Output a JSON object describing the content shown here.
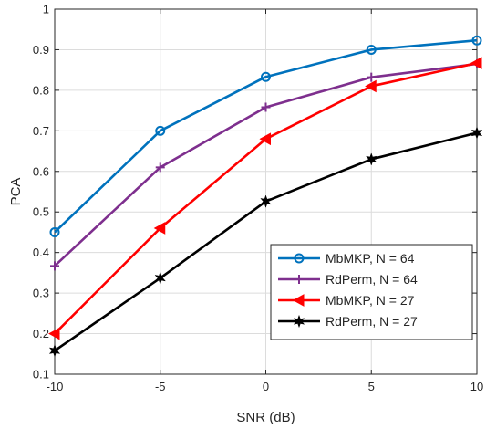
{
  "chart_data": {
    "type": "line",
    "x": [
      -10,
      -5,
      0,
      5,
      10
    ],
    "xlabel": "SNR (dB)",
    "ylabel": "PCA",
    "xlim": [
      -10,
      10
    ],
    "ylim": [
      0.1,
      1
    ],
    "xticks": [
      -10,
      -5,
      0,
      5,
      10
    ],
    "xtick_labels": [
      "-10",
      "-5",
      "0",
      "5",
      "10"
    ],
    "yticks": [
      0.1,
      0.2,
      0.3,
      0.4,
      0.5,
      0.6,
      0.7,
      0.8,
      0.9,
      1
    ],
    "ytick_labels": [
      "0.1",
      "0.2",
      "0.3",
      "0.4",
      "0.5",
      "0.6",
      "0.7",
      "0.8",
      "0.9",
      "1"
    ],
    "grid": true,
    "legend_position": "bottom-right",
    "series": [
      {
        "name": "MbMKP, N = 64",
        "values": [
          0.45,
          0.7,
          0.833,
          0.9,
          0.923
        ],
        "color": "#0072BD",
        "marker": "circle"
      },
      {
        "name": "RdPerm, N = 64",
        "values": [
          0.367,
          0.61,
          0.758,
          0.832,
          0.865
        ],
        "color": "#7E2F8E",
        "marker": "plus"
      },
      {
        "name": "MbMKP, N = 27",
        "values": [
          0.2,
          0.46,
          0.68,
          0.81,
          0.867
        ],
        "color": "#FF0000",
        "marker": "triangle-left"
      },
      {
        "name": "RdPerm, N = 27",
        "values": [
          0.158,
          0.337,
          0.526,
          0.63,
          0.695
        ],
        "color": "#000000",
        "marker": "hexagram"
      }
    ]
  }
}
